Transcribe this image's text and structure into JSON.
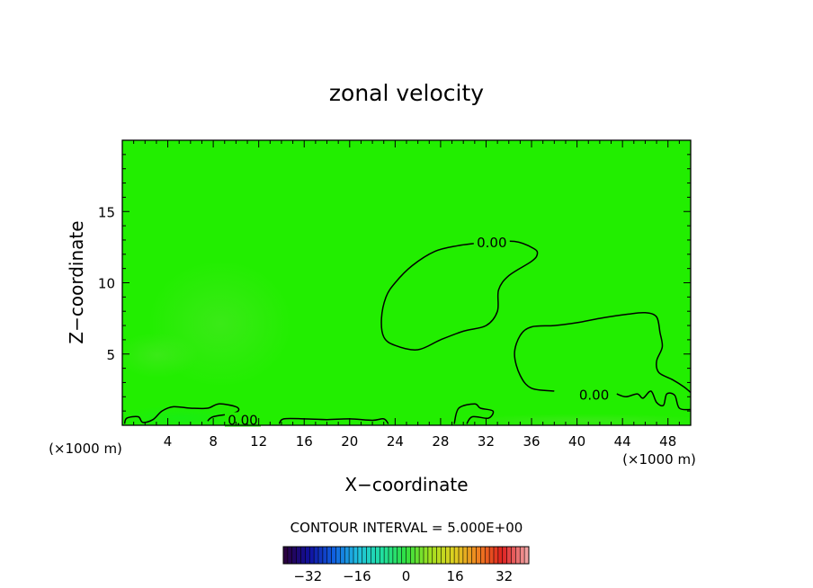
{
  "chart_data": {
    "type": "heatmap",
    "title": "zonal velocity",
    "xlabel": "X−coordinate",
    "ylabel": "Z−coordinate",
    "x_unit_left": "(×1000 m)",
    "x_unit_right": "(×1000 m)",
    "xlim": [
      0,
      50
    ],
    "ylim": [
      0,
      20
    ],
    "x_ticks": [
      4,
      8,
      12,
      16,
      20,
      24,
      28,
      32,
      36,
      40,
      44,
      48
    ],
    "y_ticks": [
      5,
      10,
      15
    ],
    "field_color": "#22ee00",
    "contour_color": "#000000",
    "contour_interval_label": "CONTOUR INTERVAL = 5.000E+00",
    "contour_labels": [
      {
        "text": "0.00",
        "x": 32.5,
        "y": 12.8
      },
      {
        "text": "0.00",
        "x": 41.5,
        "y": 2.1
      },
      {
        "text": "0.00",
        "x": 10.6,
        "y": 0.35
      }
    ],
    "contours": [
      {
        "name": "closed-contour-upper",
        "points": [
          [
            31.5,
            12.8
          ],
          [
            34.5,
            12.9
          ],
          [
            36.2,
            12.4
          ],
          [
            36.5,
            12.0
          ],
          [
            36.0,
            11.5
          ],
          [
            34.0,
            10.5
          ],
          [
            33.1,
            9.5
          ],
          [
            33.0,
            8.0
          ],
          [
            32.0,
            7.0
          ],
          [
            30.0,
            6.6
          ],
          [
            28.0,
            6.0
          ],
          [
            26.0,
            5.3
          ],
          [
            24.0,
            5.6
          ],
          [
            23.0,
            6.2
          ],
          [
            22.8,
            7.5
          ],
          [
            23.2,
            9.0
          ],
          [
            24.0,
            10.0
          ],
          [
            25.5,
            11.2
          ],
          [
            27.5,
            12.2
          ],
          [
            29.5,
            12.6
          ],
          [
            31.5,
            12.8
          ]
        ]
      },
      {
        "name": "closed-contour-lower",
        "points": [
          [
            38.0,
            2.4
          ],
          [
            36.0,
            2.6
          ],
          [
            35.0,
            3.5
          ],
          [
            34.5,
            5.0
          ],
          [
            35.0,
            6.3
          ],
          [
            36.0,
            6.9
          ],
          [
            38.0,
            7.0
          ],
          [
            40.0,
            7.2
          ],
          [
            42.0,
            7.5
          ],
          [
            44.5,
            7.8
          ],
          [
            46.0,
            7.9
          ],
          [
            47.0,
            7.6
          ],
          [
            47.3,
            6.5
          ],
          [
            47.5,
            5.5
          ],
          [
            47.0,
            4.5
          ],
          [
            47.2,
            3.7
          ],
          [
            48.4,
            3.2
          ],
          [
            49.4,
            2.7
          ],
          [
            50.0,
            2.3
          ]
        ]
      },
      {
        "name": "lower-contour-tail",
        "points": [
          [
            50.0,
            1.1
          ],
          [
            49.0,
            1.2
          ],
          [
            48.6,
            2.1
          ],
          [
            47.9,
            2.2
          ],
          [
            47.6,
            1.4
          ],
          [
            47.0,
            1.6
          ],
          [
            46.5,
            2.4
          ],
          [
            45.8,
            1.9
          ],
          [
            45.3,
            2.2
          ],
          [
            44.3,
            2.0
          ],
          [
            43.5,
            2.2
          ]
        ]
      },
      {
        "name": "near-surface-contour-left",
        "points": [
          [
            0.2,
            0.1
          ],
          [
            0.4,
            0.5
          ],
          [
            1.4,
            0.6
          ],
          [
            1.8,
            0.2
          ],
          [
            2.7,
            0.4
          ],
          [
            3.5,
            1.0
          ],
          [
            4.5,
            1.3
          ],
          [
            6.0,
            1.2
          ],
          [
            7.5,
            1.2
          ],
          [
            8.5,
            1.5
          ],
          [
            10.0,
            1.3
          ],
          [
            10.2,
            1.0
          ],
          [
            9.5,
            0.8
          ],
          [
            8.0,
            0.6
          ],
          [
            7.5,
            0.3
          ]
        ]
      },
      {
        "name": "near-surface-contour-middle",
        "points": [
          [
            13.8,
            0.1
          ],
          [
            14.2,
            0.45
          ],
          [
            16.0,
            0.45
          ],
          [
            18.0,
            0.4
          ],
          [
            20.0,
            0.45
          ],
          [
            22.0,
            0.35
          ],
          [
            23.0,
            0.45
          ],
          [
            23.4,
            0.1
          ]
        ]
      },
      {
        "name": "near-surface-contour-right",
        "points": [
          [
            29.2,
            0.1
          ],
          [
            29.6,
            1.2
          ],
          [
            31.0,
            1.5
          ],
          [
            31.5,
            1.2
          ],
          [
            32.6,
            1.0
          ],
          [
            32.2,
            0.5
          ],
          [
            30.8,
            0.6
          ],
          [
            30.3,
            0.1
          ]
        ]
      }
    ],
    "colorbar": {
      "min": -40,
      "max": 40,
      "tick_labels": [
        "−32",
        "−16",
        "0",
        "16",
        "32"
      ],
      "tick_values": [
        -32,
        -16,
        0,
        16,
        32
      ],
      "stops": [
        "#2a0040",
        "#1010a0",
        "#1060e0",
        "#20c0e0",
        "#20e0a0",
        "#30e040",
        "#a0e020",
        "#e0d020",
        "#f08020",
        "#e02020",
        "#f0a0a0"
      ]
    }
  }
}
